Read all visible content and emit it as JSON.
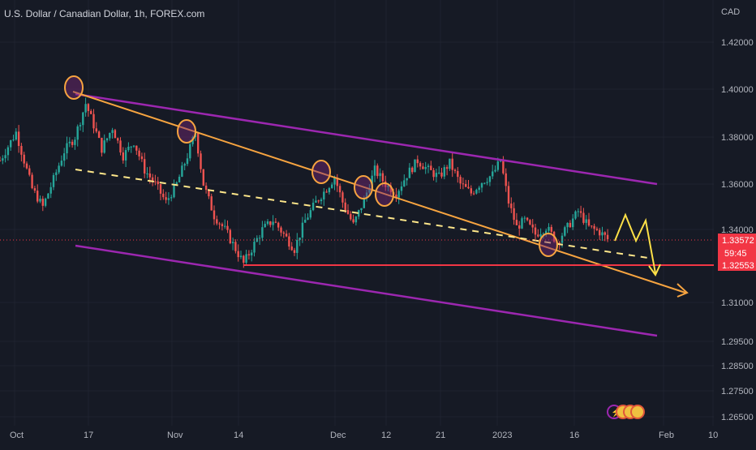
{
  "chart_data": {
    "type": "candlestick",
    "title": "U.S. Dollar / Canadian Dollar, 1h, FOREX.com",
    "currency": "CAD",
    "y_ticks": [
      1.42,
      1.4,
      1.38,
      1.36,
      1.34,
      1.31,
      1.295,
      1.285,
      1.275,
      1.265
    ],
    "y_tick_labels": [
      "1.42000",
      "1.40000",
      "1.38000",
      "1.36000",
      "1.34000",
      "1.31000",
      "1.29500",
      "1.28500",
      "1.27500",
      "1.26500"
    ],
    "x_tick_labels": [
      "Oct",
      "17",
      "Nov",
      "14",
      "Dec",
      "12",
      "21",
      "2023",
      "16",
      "Feb",
      "10"
    ],
    "current_price": "1.33572",
    "countdown": "59:45",
    "support_price": "1.32553",
    "price_path": [
      [
        0,
        1.37
      ],
      [
        3,
        1.382
      ],
      [
        6,
        1.358
      ],
      [
        8,
        1.35
      ],
      [
        10,
        1.362
      ],
      [
        12,
        1.374
      ],
      [
        14,
        1.38
      ],
      [
        16,
        1.394
      ],
      [
        17.5,
        1.385
      ],
      [
        19,
        1.375
      ],
      [
        21,
        1.384
      ],
      [
        23,
        1.372
      ],
      [
        25,
        1.378
      ],
      [
        27,
        1.366
      ],
      [
        29,
        1.36
      ],
      [
        31,
        1.352
      ],
      [
        33,
        1.36
      ],
      [
        35,
        1.372
      ],
      [
        36.5,
        1.382
      ],
      [
        38,
        1.36
      ],
      [
        40,
        1.346
      ],
      [
        42,
        1.34
      ],
      [
        44,
        1.332
      ],
      [
        45.5,
        1.326
      ],
      [
        47,
        1.332
      ],
      [
        49,
        1.34
      ],
      [
        51,
        1.344
      ],
      [
        53,
        1.338
      ],
      [
        55,
        1.332
      ],
      [
        57,
        1.344
      ],
      [
        59,
        1.352
      ],
      [
        61,
        1.358
      ],
      [
        62.5,
        1.363
      ],
      [
        64,
        1.352
      ],
      [
        66,
        1.342
      ],
      [
        68,
        1.353
      ],
      [
        70,
        1.366
      ],
      [
        72,
        1.36
      ],
      [
        74,
        1.356
      ],
      [
        76,
        1.364
      ],
      [
        78,
        1.37
      ],
      [
        80,
        1.366
      ],
      [
        82,
        1.363
      ],
      [
        84,
        1.369
      ],
      [
        86,
        1.36
      ],
      [
        88,
        1.356
      ],
      [
        90,
        1.361
      ],
      [
        92,
        1.364
      ],
      [
        93.5,
        1.37
      ],
      [
        95,
        1.352
      ],
      [
        96.5,
        1.341
      ],
      [
        98,
        1.344
      ],
      [
        100,
        1.338
      ],
      [
        102,
        1.341
      ],
      [
        104,
        1.335
      ],
      [
        106,
        1.341
      ],
      [
        108,
        1.348
      ],
      [
        110,
        1.341
      ],
      [
        112,
        1.339
      ],
      [
        113.5,
        1.336
      ]
    ],
    "last_candle_index": 113.5
  }
}
